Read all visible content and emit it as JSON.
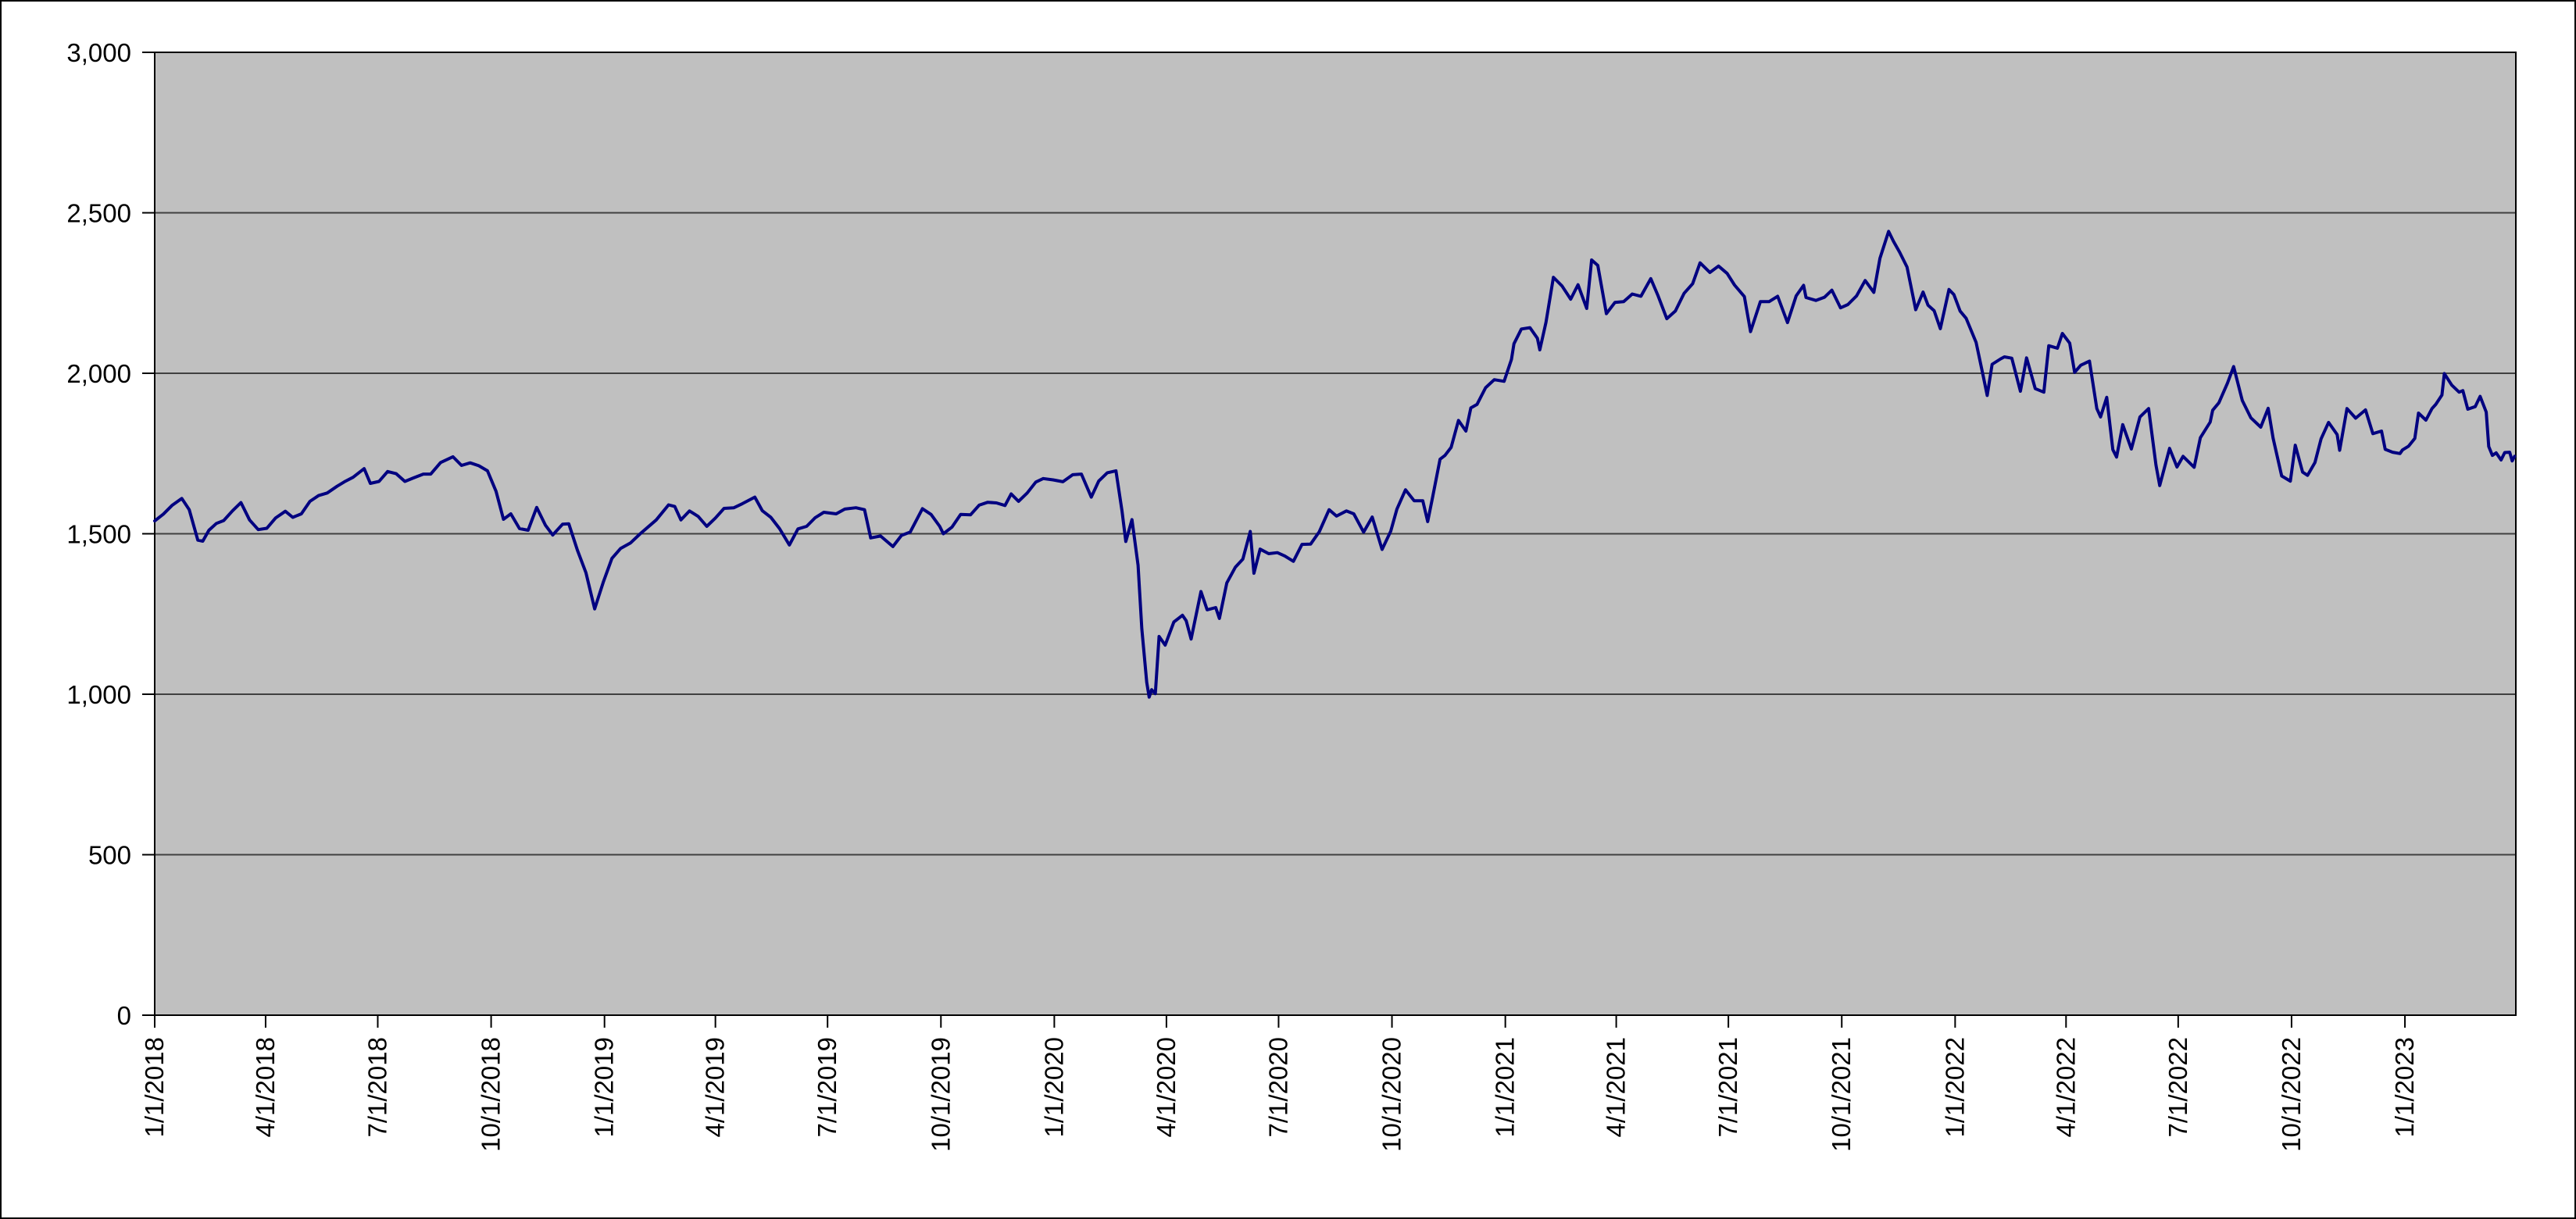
{
  "chart_data": {
    "type": "line",
    "title": "",
    "xlabel": "",
    "ylabel": "",
    "legend": "none",
    "grid": true,
    "ylim": [
      0,
      3000
    ],
    "ytick_values": [
      0,
      500,
      1000,
      1500,
      2000,
      2500,
      3000
    ],
    "ytick_labels": [
      "0",
      "500",
      "1,000",
      "1,500",
      "2,000",
      "2,500",
      "3,000"
    ],
    "x_start": "2018-01-01",
    "x_end": "2023-04-01",
    "xticks": [
      {
        "date": "2018-01-01",
        "label": "1/1/2018"
      },
      {
        "date": "2018-04-01",
        "label": "4/1/2018"
      },
      {
        "date": "2018-07-01",
        "label": "7/1/2018"
      },
      {
        "date": "2018-10-01",
        "label": "10/1/2018"
      },
      {
        "date": "2019-01-01",
        "label": "1/1/2019"
      },
      {
        "date": "2019-04-01",
        "label": "4/1/2019"
      },
      {
        "date": "2019-07-01",
        "label": "7/1/2019"
      },
      {
        "date": "2019-10-01",
        "label": "10/1/2019"
      },
      {
        "date": "2020-01-01",
        "label": "1/1/2020"
      },
      {
        "date": "2020-04-01",
        "label": "4/1/2020"
      },
      {
        "date": "2020-07-01",
        "label": "7/1/2020"
      },
      {
        "date": "2020-10-01",
        "label": "10/1/2020"
      },
      {
        "date": "2021-01-01",
        "label": "1/1/2021"
      },
      {
        "date": "2021-04-01",
        "label": "4/1/2021"
      },
      {
        "date": "2021-07-01",
        "label": "7/1/2021"
      },
      {
        "date": "2021-10-01",
        "label": "10/1/2021"
      },
      {
        "date": "2022-01-01",
        "label": "1/1/2022"
      },
      {
        "date": "2022-04-01",
        "label": "4/1/2022"
      },
      {
        "date": "2022-07-01",
        "label": "7/1/2022"
      },
      {
        "date": "2022-10-01",
        "label": "10/1/2022"
      },
      {
        "date": "2023-01-01",
        "label": "1/1/2023"
      }
    ],
    "colors": {
      "plot_bg": "#c0c0c0",
      "gridline": "#404040",
      "axis": "#000000",
      "text": "#000000",
      "line": "#000080",
      "frame_bg": "#ffffff"
    },
    "series_name": "",
    "points": [
      [
        "2018-01-01",
        1540
      ],
      [
        "2018-01-08",
        1561
      ],
      [
        "2018-01-15",
        1588
      ],
      [
        "2018-01-23",
        1610
      ],
      [
        "2018-01-29",
        1575
      ],
      [
        "2018-02-05",
        1480
      ],
      [
        "2018-02-09",
        1477
      ],
      [
        "2018-02-14",
        1511
      ],
      [
        "2018-02-20",
        1532
      ],
      [
        "2018-02-26",
        1541
      ],
      [
        "2018-03-05",
        1571
      ],
      [
        "2018-03-12",
        1597
      ],
      [
        "2018-03-19",
        1543
      ],
      [
        "2018-03-26",
        1513
      ],
      [
        "2018-04-02",
        1517
      ],
      [
        "2018-04-09",
        1549
      ],
      [
        "2018-04-17",
        1570
      ],
      [
        "2018-04-23",
        1551
      ],
      [
        "2018-04-30",
        1562
      ],
      [
        "2018-05-07",
        1601
      ],
      [
        "2018-05-14",
        1619
      ],
      [
        "2018-05-21",
        1627
      ],
      [
        "2018-05-29",
        1648
      ],
      [
        "2018-06-04",
        1662
      ],
      [
        "2018-06-11",
        1676
      ],
      [
        "2018-06-20",
        1703
      ],
      [
        "2018-06-25",
        1657
      ],
      [
        "2018-07-02",
        1663
      ],
      [
        "2018-07-09",
        1694
      ],
      [
        "2018-07-16",
        1687
      ],
      [
        "2018-07-23",
        1663
      ],
      [
        "2018-07-30",
        1674
      ],
      [
        "2018-08-07",
        1686
      ],
      [
        "2018-08-13",
        1686
      ],
      [
        "2018-08-21",
        1722
      ],
      [
        "2018-08-31",
        1740
      ],
      [
        "2018-09-07",
        1713
      ],
      [
        "2018-09-14",
        1721
      ],
      [
        "2018-09-21",
        1712
      ],
      [
        "2018-09-28",
        1696
      ],
      [
        "2018-10-05",
        1632
      ],
      [
        "2018-10-11",
        1545
      ],
      [
        "2018-10-17",
        1562
      ],
      [
        "2018-10-24",
        1516
      ],
      [
        "2018-10-31",
        1511
      ],
      [
        "2018-11-07",
        1582
      ],
      [
        "2018-11-14",
        1527
      ],
      [
        "2018-11-20",
        1496
      ],
      [
        "2018-11-28",
        1530
      ],
      [
        "2018-12-03",
        1531
      ],
      [
        "2018-12-10",
        1449
      ],
      [
        "2018-12-17",
        1378
      ],
      [
        "2018-12-24",
        1266
      ],
      [
        "2018-12-31",
        1349
      ],
      [
        "2019-01-07",
        1423
      ],
      [
        "2019-01-14",
        1454
      ],
      [
        "2019-01-22",
        1471
      ],
      [
        "2019-01-30",
        1500
      ],
      [
        "2019-02-05",
        1520
      ],
      [
        "2019-02-12",
        1543
      ],
      [
        "2019-02-22",
        1590
      ],
      [
        "2019-02-27",
        1585
      ],
      [
        "2019-03-04",
        1543
      ],
      [
        "2019-03-11",
        1571
      ],
      [
        "2019-03-18",
        1554
      ],
      [
        "2019-03-25",
        1523
      ],
      [
        "2019-04-01",
        1549
      ],
      [
        "2019-04-08",
        1579
      ],
      [
        "2019-04-16",
        1581
      ],
      [
        "2019-04-23",
        1594
      ],
      [
        "2019-05-03",
        1614
      ],
      [
        "2019-05-09",
        1572
      ],
      [
        "2019-05-16",
        1551
      ],
      [
        "2019-05-23",
        1516
      ],
      [
        "2019-05-31",
        1465
      ],
      [
        "2019-06-07",
        1515
      ],
      [
        "2019-06-14",
        1523
      ],
      [
        "2019-06-21",
        1550
      ],
      [
        "2019-06-28",
        1567
      ],
      [
        "2019-07-08",
        1562
      ],
      [
        "2019-07-15",
        1577
      ],
      [
        "2019-07-24",
        1581
      ],
      [
        "2019-07-31",
        1575
      ],
      [
        "2019-08-05",
        1487
      ],
      [
        "2019-08-13",
        1493
      ],
      [
        "2019-08-23",
        1460
      ],
      [
        "2019-08-30",
        1495
      ],
      [
        "2019-09-06",
        1505
      ],
      [
        "2019-09-16",
        1578
      ],
      [
        "2019-09-23",
        1560
      ],
      [
        "2019-09-30",
        1523
      ],
      [
        "2019-10-03",
        1500
      ],
      [
        "2019-10-10",
        1521
      ],
      [
        "2019-10-17",
        1560
      ],
      [
        "2019-10-25",
        1559
      ],
      [
        "2019-11-01",
        1589
      ],
      [
        "2019-11-08",
        1598
      ],
      [
        "2019-11-15",
        1596
      ],
      [
        "2019-11-22",
        1588
      ],
      [
        "2019-11-27",
        1624
      ],
      [
        "2019-12-03",
        1601
      ],
      [
        "2019-12-10",
        1627
      ],
      [
        "2019-12-17",
        1661
      ],
      [
        "2019-12-23",
        1672
      ],
      [
        "2019-12-31",
        1668
      ],
      [
        "2020-01-08",
        1662
      ],
      [
        "2020-01-16",
        1684
      ],
      [
        "2020-01-23",
        1686
      ],
      [
        "2020-01-31",
        1614
      ],
      [
        "2020-02-06",
        1664
      ],
      [
        "2020-02-13",
        1690
      ],
      [
        "2020-02-20",
        1696
      ],
      [
        "2020-02-25",
        1570
      ],
      [
        "2020-02-28",
        1476
      ],
      [
        "2020-03-04",
        1544
      ],
      [
        "2020-03-09",
        1402
      ],
      [
        "2020-03-12",
        1204
      ],
      [
        "2020-03-16",
        1037
      ],
      [
        "2020-03-18",
        991
      ],
      [
        "2020-03-20",
        1014
      ],
      [
        "2020-03-23",
        1002
      ],
      [
        "2020-03-26",
        1180
      ],
      [
        "2020-03-31",
        1153
      ],
      [
        "2020-04-07",
        1225
      ],
      [
        "2020-04-14",
        1246
      ],
      [
        "2020-04-17",
        1229
      ],
      [
        "2020-04-21",
        1172
      ],
      [
        "2020-04-29",
        1320
      ],
      [
        "2020-05-04",
        1263
      ],
      [
        "2020-05-11",
        1270
      ],
      [
        "2020-05-14",
        1236
      ],
      [
        "2020-05-20",
        1347
      ],
      [
        "2020-05-27",
        1396
      ],
      [
        "2020-06-02",
        1421
      ],
      [
        "2020-06-08",
        1507
      ],
      [
        "2020-06-11",
        1377
      ],
      [
        "2020-06-16",
        1452
      ],
      [
        "2020-06-23",
        1438
      ],
      [
        "2020-06-30",
        1441
      ],
      [
        "2020-07-06",
        1431
      ],
      [
        "2020-07-13",
        1414
      ],
      [
        "2020-07-20",
        1467
      ],
      [
        "2020-07-27",
        1468
      ],
      [
        "2020-08-03",
        1506
      ],
      [
        "2020-08-11",
        1575
      ],
      [
        "2020-08-17",
        1555
      ],
      [
        "2020-08-25",
        1571
      ],
      [
        "2020-08-31",
        1562
      ],
      [
        "2020-09-08",
        1505
      ],
      [
        "2020-09-15",
        1552
      ],
      [
        "2020-09-23",
        1451
      ],
      [
        "2020-09-30",
        1508
      ],
      [
        "2020-10-05",
        1577
      ],
      [
        "2020-10-12",
        1637
      ],
      [
        "2020-10-19",
        1603
      ],
      [
        "2020-10-26",
        1603
      ],
      [
        "2020-10-30",
        1538
      ],
      [
        "2020-11-03",
        1614
      ],
      [
        "2020-11-09",
        1732
      ],
      [
        "2020-11-13",
        1744
      ],
      [
        "2020-11-18",
        1769
      ],
      [
        "2020-11-24",
        1853
      ],
      [
        "2020-11-30",
        1820
      ],
      [
        "2020-12-04",
        1892
      ],
      [
        "2020-12-09",
        1903
      ],
      [
        "2020-12-16",
        1955
      ],
      [
        "2020-12-23",
        1980
      ],
      [
        "2020-12-31",
        1975
      ],
      [
        "2021-01-06",
        2043
      ],
      [
        "2021-01-08",
        2092
      ],
      [
        "2021-01-14",
        2138
      ],
      [
        "2021-01-21",
        2142
      ],
      [
        "2021-01-27",
        2109
      ],
      [
        "2021-01-29",
        2073
      ],
      [
        "2021-02-03",
        2159
      ],
      [
        "2021-02-09",
        2299
      ],
      [
        "2021-02-16",
        2272
      ],
      [
        "2021-02-23",
        2231
      ],
      [
        "2021-03-01",
        2276
      ],
      [
        "2021-03-08",
        2202
      ],
      [
        "2021-03-12",
        2353
      ],
      [
        "2021-03-17",
        2336
      ],
      [
        "2021-03-24",
        2186
      ],
      [
        "2021-03-31",
        2221
      ],
      [
        "2021-04-07",
        2223
      ],
      [
        "2021-04-14",
        2247
      ],
      [
        "2021-04-21",
        2240
      ],
      [
        "2021-04-29",
        2295
      ],
      [
        "2021-05-05",
        2241
      ],
      [
        "2021-05-12",
        2170
      ],
      [
        "2021-05-19",
        2194
      ],
      [
        "2021-05-26",
        2249
      ],
      [
        "2021-06-02",
        2279
      ],
      [
        "2021-06-08",
        2344
      ],
      [
        "2021-06-16",
        2314
      ],
      [
        "2021-06-23",
        2334
      ],
      [
        "2021-06-30",
        2311
      ],
      [
        "2021-07-06",
        2275
      ],
      [
        "2021-07-14",
        2239
      ],
      [
        "2021-07-19",
        2130
      ],
      [
        "2021-07-27",
        2223
      ],
      [
        "2021-08-03",
        2223
      ],
      [
        "2021-08-10",
        2240
      ],
      [
        "2021-08-18",
        2158
      ],
      [
        "2021-08-25",
        2241
      ],
      [
        "2021-08-31",
        2274
      ],
      [
        "2021-09-02",
        2236
      ],
      [
        "2021-09-10",
        2227
      ],
      [
        "2021-09-17",
        2237
      ],
      [
        "2021-09-23",
        2259
      ],
      [
        "2021-09-30",
        2204
      ],
      [
        "2021-10-06",
        2214
      ],
      [
        "2021-10-13",
        2241
      ],
      [
        "2021-10-20",
        2289
      ],
      [
        "2021-10-27",
        2252
      ],
      [
        "2021-11-01",
        2358
      ],
      [
        "2021-11-08",
        2442
      ],
      [
        "2021-11-12",
        2411
      ],
      [
        "2021-11-17",
        2377
      ],
      [
        "2021-11-23",
        2331
      ],
      [
        "2021-11-30",
        2198
      ],
      [
        "2021-12-06",
        2253
      ],
      [
        "2021-12-10",
        2212
      ],
      [
        "2021-12-15",
        2195
      ],
      [
        "2021-12-20",
        2139
      ],
      [
        "2021-12-27",
        2261
      ],
      [
        "2021-12-31",
        2245
      ],
      [
        "2022-01-05",
        2194
      ],
      [
        "2022-01-10",
        2171
      ],
      [
        "2022-01-18",
        2096
      ],
      [
        "2022-01-24",
        1988
      ],
      [
        "2022-01-27",
        1931
      ],
      [
        "2022-01-31",
        2028
      ],
      [
        "2022-02-07",
        2045
      ],
      [
        "2022-02-10",
        2051
      ],
      [
        "2022-02-16",
        2047
      ],
      [
        "2022-02-23",
        1944
      ],
      [
        "2022-02-28",
        2048
      ],
      [
        "2022-03-07",
        1952
      ],
      [
        "2022-03-14",
        1941
      ],
      [
        "2022-03-18",
        2086
      ],
      [
        "2022-03-25",
        2078
      ],
      [
        "2022-03-29",
        2124
      ],
      [
        "2022-04-04",
        2094
      ],
      [
        "2022-04-08",
        2003
      ],
      [
        "2022-04-13",
        2025
      ],
      [
        "2022-04-20",
        2038
      ],
      [
        "2022-04-26",
        1890
      ],
      [
        "2022-04-29",
        1864
      ],
      [
        "2022-05-04",
        1925
      ],
      [
        "2022-05-09",
        1762
      ],
      [
        "2022-05-12",
        1739
      ],
      [
        "2022-05-17",
        1840
      ],
      [
        "2022-05-24",
        1764
      ],
      [
        "2022-05-31",
        1864
      ],
      [
        "2022-06-07",
        1890
      ],
      [
        "2022-06-13",
        1714
      ],
      [
        "2022-06-16",
        1650
      ],
      [
        "2022-06-24",
        1766
      ],
      [
        "2022-06-30",
        1708
      ],
      [
        "2022-07-05",
        1741
      ],
      [
        "2022-07-14",
        1707
      ],
      [
        "2022-07-19",
        1799
      ],
      [
        "2022-07-27",
        1848
      ],
      [
        "2022-07-29",
        1885
      ],
      [
        "2022-08-03",
        1908
      ],
      [
        "2022-08-10",
        1969
      ],
      [
        "2022-08-15",
        2021
      ],
      [
        "2022-08-22",
        1915
      ],
      [
        "2022-08-29",
        1861
      ],
      [
        "2022-09-06",
        1832
      ],
      [
        "2022-09-12",
        1891
      ],
      [
        "2022-09-16",
        1798
      ],
      [
        "2022-09-23",
        1680
      ],
      [
        "2022-09-30",
        1664
      ],
      [
        "2022-10-04",
        1776
      ],
      [
        "2022-10-10",
        1692
      ],
      [
        "2022-10-14",
        1682
      ],
      [
        "2022-10-20",
        1722
      ],
      [
        "2022-10-25",
        1796
      ],
      [
        "2022-10-31",
        1847
      ],
      [
        "2022-11-07",
        1809
      ],
      [
        "2022-11-09",
        1760
      ],
      [
        "2022-11-15",
        1890
      ],
      [
        "2022-11-22",
        1860
      ],
      [
        "2022-11-30",
        1886
      ],
      [
        "2022-12-06",
        1812
      ],
      [
        "2022-12-13",
        1820
      ],
      [
        "2022-12-16",
        1763
      ],
      [
        "2022-12-22",
        1754
      ],
      [
        "2022-12-28",
        1750
      ],
      [
        "2022-12-30",
        1761
      ],
      [
        "2023-01-04",
        1773
      ],
      [
        "2023-01-09",
        1797
      ],
      [
        "2023-01-12",
        1876
      ],
      [
        "2023-01-18",
        1854
      ],
      [
        "2023-01-23",
        1890
      ],
      [
        "2023-01-26",
        1903
      ],
      [
        "2023-01-31",
        1932
      ],
      [
        "2023-02-02",
        1999
      ],
      [
        "2023-02-08",
        1963
      ],
      [
        "2023-02-14",
        1941
      ],
      [
        "2023-02-17",
        1946
      ],
      [
        "2023-02-21",
        1888
      ],
      [
        "2023-02-27",
        1896
      ],
      [
        "2023-03-03",
        1928
      ],
      [
        "2023-03-08",
        1879
      ],
      [
        "2023-03-10",
        1772
      ],
      [
        "2023-03-13",
        1744
      ],
      [
        "2023-03-16",
        1752
      ],
      [
        "2023-03-20",
        1730
      ],
      [
        "2023-03-23",
        1753
      ],
      [
        "2023-03-27",
        1754
      ],
      [
        "2023-03-29",
        1727
      ],
      [
        "2023-03-31",
        1741
      ]
    ]
  }
}
